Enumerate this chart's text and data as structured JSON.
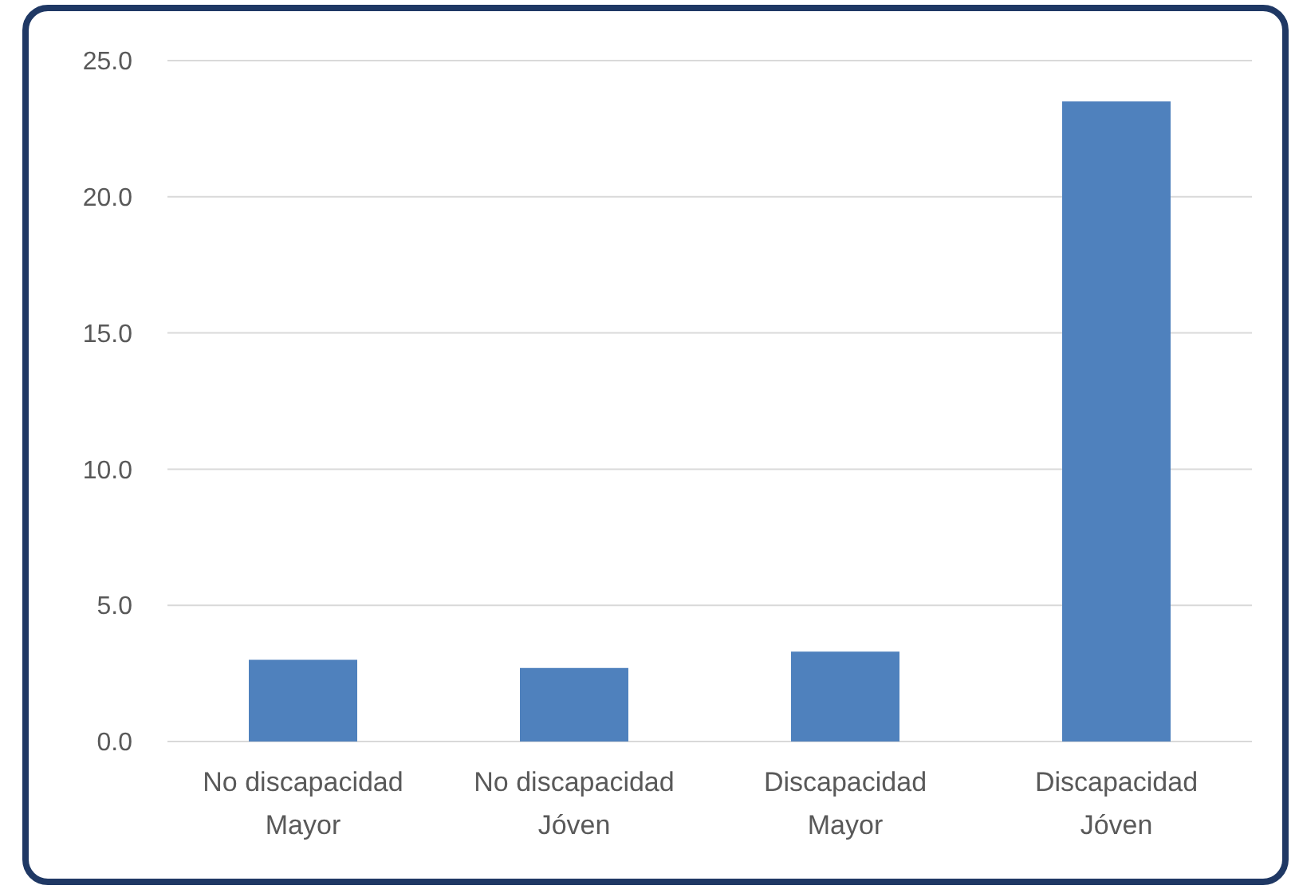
{
  "chart_data": {
    "type": "bar",
    "categories": [
      "No discapacidad Mayor",
      "No discapacidad Jóven",
      "Discapacidad Mayor",
      "Discapacidad Jóven"
    ],
    "values": [
      3.0,
      2.7,
      3.3,
      23.5
    ],
    "color": "#4f81bd",
    "ylim": [
      0,
      25
    ],
    "yticks": [
      {
        "value": 0,
        "label": "0.0"
      },
      {
        "value": 5,
        "label": "5.0"
      },
      {
        "value": 10,
        "label": "10.0"
      },
      {
        "value": 15,
        "label": "15.0"
      },
      {
        "value": 20,
        "label": "20.0"
      },
      {
        "value": 25,
        "label": "25.0"
      }
    ],
    "grid": "y"
  }
}
